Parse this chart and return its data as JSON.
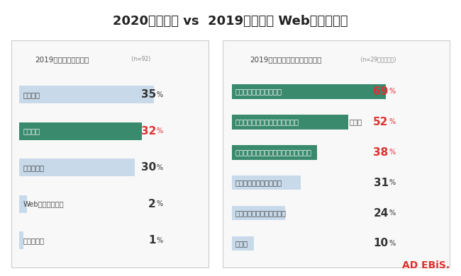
{
  "title": "2020年上半期 vs  2019年下半期 Web広告費比較",
  "left_panel_title": "2019年下半期との比較",
  "left_panel_n": " (n=92)",
  "right_panel_title": "2019年下半期より増額した理由",
  "right_panel_n": " (n=29、複数回答)",
  "left_bars": [
    {
      "label": "減額した",
      "value": 35,
      "bar_color": "#c8daea",
      "text_color": "#444444",
      "value_color": "#333333",
      "bold": false
    },
    {
      "label": "増額した",
      "value": 32,
      "bar_color": "#3a8a6e",
      "text_color": "#ffffff",
      "value_color": "#e03030",
      "bold": true
    },
    {
      "label": "変わらない",
      "value": 30,
      "bar_color": "#c8daea",
      "text_color": "#444444",
      "value_color": "#333333",
      "bold": false
    },
    {
      "label": "Web広告出稿なし",
      "value": 2,
      "bar_color": "#c8daea",
      "text_color": "#444444",
      "value_color": "#333333",
      "bold": false
    },
    {
      "label": "わからない",
      "value": 1,
      "bar_color": "#c8daea",
      "text_color": "#444444",
      "value_color": "#333333",
      "bold": false
    }
  ],
  "right_bars": [
    {
      "label": "オンラインの売上が伸長",
      "value": 69,
      "bar_color": "#3a8a6e",
      "text_color": "#ffffff",
      "value_color": "#e03030",
      "bold": true
    },
    {
      "label": "実店舗の売上減によるオンライン",
      "value": 52,
      "bar_color": "#3a8a6e",
      "text_color": "#ffffff",
      "value_color": "#e03030",
      "bold": true,
      "suffix": "シフト"
    },
    {
      "label": "新型コロナウイルスの影響による需要増",
      "value": 38,
      "bar_color": "#3a8a6e",
      "text_color": "#ffffff",
      "value_color": "#e03030",
      "bold": true
    },
    {
      "label": "オンラインの売上が減少",
      "value": 31,
      "bar_color": "#c8daea",
      "text_color": "#444444",
      "value_color": "#333333",
      "bold": false
    },
    {
      "label": "商材の販売シーズンのため",
      "value": 24,
      "bar_color": "#c8daea",
      "text_color": "#444444",
      "value_color": "#333333",
      "bold": false
    },
    {
      "label": "その他",
      "value": 10,
      "bar_color": "#c8daea",
      "text_color": "#444444",
      "value_color": "#333333",
      "bold": false
    }
  ],
  "background_color": "#ffffff",
  "panel_bg_color": "#f8f8f8",
  "panel_border_color": "#cccccc",
  "adebis_text": "AD EBiS.",
  "adebis_color": "#e03030"
}
